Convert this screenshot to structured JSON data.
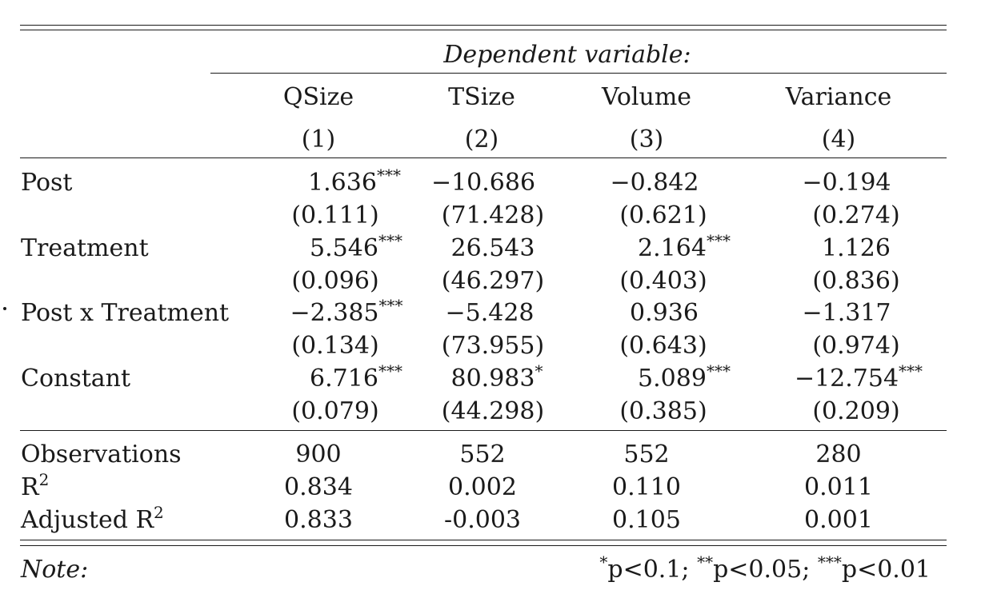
{
  "header": {
    "dependent_variable_label": "Dependent variable:",
    "columns": [
      {
        "name": "QSize",
        "number": "(1)"
      },
      {
        "name": "TSize",
        "number": "(2)"
      },
      {
        "name": "Volume",
        "number": "(3)"
      },
      {
        "name": "Variance",
        "number": "(4)"
      }
    ]
  },
  "rows": [
    {
      "label": "Post",
      "coefs": [
        {
          "value": "1.636",
          "stars": "***"
        },
        {
          "value": "−10.686",
          "stars": ""
        },
        {
          "value": "−0.842",
          "stars": ""
        },
        {
          "value": "−0.194",
          "stars": ""
        }
      ],
      "ses": [
        "(0.111)",
        "(71.428)",
        "(0.621)",
        "(0.274)"
      ]
    },
    {
      "label": "Treatment",
      "coefs": [
        {
          "value": "5.546",
          "stars": "***"
        },
        {
          "value": "26.543",
          "stars": ""
        },
        {
          "value": "2.164",
          "stars": "***"
        },
        {
          "value": "1.126",
          "stars": ""
        }
      ],
      "ses": [
        "(0.096)",
        "(46.297)",
        "(0.403)",
        "(0.836)"
      ]
    },
    {
      "label": "Post x Treatment",
      "coefs": [
        {
          "value": "−2.385",
          "stars": "***"
        },
        {
          "value": "−5.428",
          "stars": ""
        },
        {
          "value": "0.936",
          "stars": ""
        },
        {
          "value": "−1.317",
          "stars": ""
        }
      ],
      "ses": [
        "(0.134)",
        "(73.955)",
        "(0.643)",
        "(0.974)"
      ]
    },
    {
      "label": "Constant",
      "coefs": [
        {
          "value": "6.716",
          "stars": "***"
        },
        {
          "value": "80.983",
          "stars": "*"
        },
        {
          "value": "5.089",
          "stars": "***"
        },
        {
          "value": "−12.754",
          "stars": "***"
        }
      ],
      "ses": [
        "(0.079)",
        "(44.298)",
        "(0.385)",
        "(0.209)"
      ]
    }
  ],
  "stats": [
    {
      "label": "Observations",
      "sup": "",
      "values": [
        "900",
        "552",
        "552",
        "280"
      ]
    },
    {
      "label": "R",
      "sup": "2",
      "values": [
        "0.834",
        "0.002",
        "0.110",
        "0.011"
      ]
    },
    {
      "label": "Adjusted R",
      "sup": "2",
      "values": [
        "0.833",
        "-0.003",
        "0.105",
        "0.001"
      ]
    }
  ],
  "note": {
    "label": "Note:",
    "s1": "*",
    "t1": "p<0.1; ",
    "s2": "**",
    "t2": "p<0.05; ",
    "s3": "***",
    "t3": "p<0.01"
  }
}
